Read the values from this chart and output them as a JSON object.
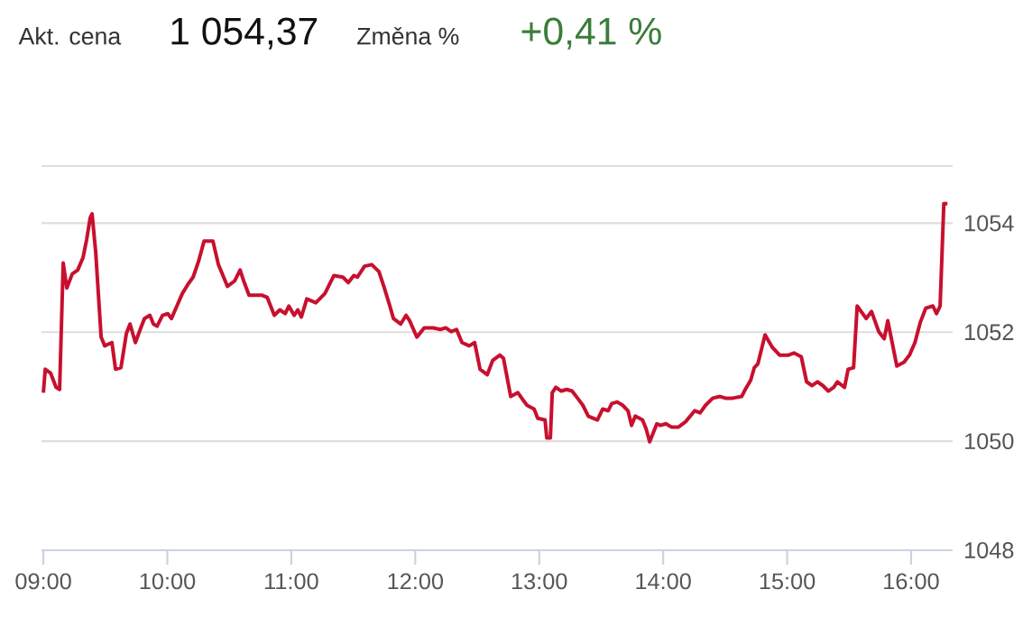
{
  "chart_data": {
    "type": "line",
    "annotations": [
      "Akt. cena",
      "1 054,37",
      "Změna %",
      "+0,41 %"
    ],
    "x": [
      9.0,
      9.015,
      9.058,
      9.102,
      9.131,
      9.16,
      9.189,
      9.233,
      9.277,
      9.32,
      9.349,
      9.378,
      9.393,
      9.422,
      9.466,
      9.495,
      9.553,
      9.582,
      9.626,
      9.67,
      9.699,
      9.742,
      9.786,
      9.815,
      9.859,
      9.888,
      9.917,
      9.961,
      10.004,
      10.033,
      10.077,
      10.121,
      10.164,
      10.208,
      10.252,
      10.296,
      10.368,
      10.412,
      10.485,
      10.543,
      10.587,
      10.616,
      10.659,
      10.761,
      10.805,
      10.863,
      10.907,
      10.951,
      10.98,
      11.023,
      11.052,
      11.081,
      11.125,
      11.198,
      11.271,
      11.344,
      11.416,
      11.46,
      11.504,
      11.533,
      11.591,
      11.649,
      11.707,
      11.751,
      11.795,
      11.824,
      11.882,
      11.926,
      11.955,
      12.013,
      12.072,
      12.144,
      12.202,
      12.246,
      12.29,
      12.333,
      12.377,
      12.435,
      12.479,
      12.523,
      12.581,
      12.624,
      12.683,
      12.712,
      12.77,
      12.828,
      12.872,
      12.901,
      12.959,
      12.988,
      13.047,
      13.061,
      13.09,
      13.105,
      13.134,
      13.178,
      13.221,
      13.265,
      13.309,
      13.352,
      13.396,
      13.469,
      13.512,
      13.556,
      13.585,
      13.629,
      13.673,
      13.716,
      13.745,
      13.775,
      13.833,
      13.862,
      13.891,
      13.949,
      13.978,
      14.022,
      14.066,
      14.124,
      14.182,
      14.255,
      14.298,
      14.342,
      14.4,
      14.459,
      14.502,
      14.56,
      14.633,
      14.662,
      14.706,
      14.735,
      14.764,
      14.822,
      14.881,
      14.939,
      15.012,
      15.055,
      15.114,
      15.157,
      15.201,
      15.244,
      15.288,
      15.332,
      15.376,
      15.405,
      15.463,
      15.492,
      15.536,
      15.565,
      15.638,
      15.681,
      15.739,
      15.783,
      15.812,
      15.885,
      15.943,
      15.987,
      16.031,
      16.074,
      16.118,
      16.176,
      16.205,
      16.234,
      16.264,
      16.293
    ],
    "series": [
      {
        "color": "#c8102e",
        "values": [
          1050.89,
          1051.32,
          1051.25,
          1050.99,
          1050.95,
          1053.27,
          1052.81,
          1053.07,
          1053.14,
          1053.37,
          1053.7,
          1054.1,
          1054.17,
          1053.47,
          1051.91,
          1051.75,
          1051.81,
          1051.32,
          1051.35,
          1051.98,
          1052.15,
          1051.81,
          1052.08,
          1052.25,
          1052.31,
          1052.15,
          1052.11,
          1052.31,
          1052.34,
          1052.25,
          1052.48,
          1052.71,
          1052.87,
          1053.01,
          1053.3,
          1053.67,
          1053.67,
          1053.24,
          1052.84,
          1052.94,
          1053.14,
          1052.94,
          1052.68,
          1052.68,
          1052.64,
          1052.31,
          1052.41,
          1052.34,
          1052.48,
          1052.31,
          1052.41,
          1052.28,
          1052.61,
          1052.54,
          1052.71,
          1053.04,
          1053.01,
          1052.91,
          1053.04,
          1053.01,
          1053.21,
          1053.24,
          1053.11,
          1052.81,
          1052.48,
          1052.25,
          1052.15,
          1052.31,
          1052.21,
          1051.91,
          1052.08,
          1052.08,
          1052.05,
          1052.08,
          1052.01,
          1052.05,
          1051.81,
          1051.75,
          1051.81,
          1051.32,
          1051.22,
          1051.48,
          1051.58,
          1051.52,
          1050.82,
          1050.89,
          1050.75,
          1050.66,
          1050.59,
          1050.42,
          1050.39,
          1050.06,
          1050.06,
          1050.89,
          1050.99,
          1050.92,
          1050.95,
          1050.92,
          1050.79,
          1050.66,
          1050.46,
          1050.39,
          1050.59,
          1050.56,
          1050.69,
          1050.72,
          1050.66,
          1050.56,
          1050.29,
          1050.46,
          1050.39,
          1050.23,
          1049.99,
          1050.32,
          1050.29,
          1050.32,
          1050.26,
          1050.26,
          1050.36,
          1050.56,
          1050.52,
          1050.66,
          1050.79,
          1050.82,
          1050.79,
          1050.79,
          1050.82,
          1050.95,
          1051.12,
          1051.35,
          1051.42,
          1051.95,
          1051.72,
          1051.58,
          1051.58,
          1051.62,
          1051.55,
          1051.09,
          1051.02,
          1051.09,
          1051.02,
          1050.92,
          1050.99,
          1051.09,
          1050.99,
          1051.32,
          1051.35,
          1052.48,
          1052.25,
          1052.38,
          1052.01,
          1051.88,
          1052.21,
          1051.38,
          1051.45,
          1051.58,
          1051.81,
          1052.18,
          1052.44,
          1052.48,
          1052.34,
          1052.48,
          1054.36,
          1054.36
        ]
      }
    ],
    "xlim": [
      8.985,
      16.335
    ],
    "ylim": [
      1048,
      1055.05
    ],
    "xticks": [
      {
        "value": 9,
        "label": "09:00"
      },
      {
        "value": 10,
        "label": "10:00"
      },
      {
        "value": 11,
        "label": "11:00"
      },
      {
        "value": 12,
        "label": "12:00"
      },
      {
        "value": 13,
        "label": "13:00"
      },
      {
        "value": 14,
        "label": "14:00"
      },
      {
        "value": 15,
        "label": "15:00"
      },
      {
        "value": 16,
        "label": "16:00"
      }
    ],
    "yticks": [
      1048,
      1050,
      1052,
      1054
    ],
    "grid": "y",
    "marker": "none",
    "line_style": "solid"
  }
}
